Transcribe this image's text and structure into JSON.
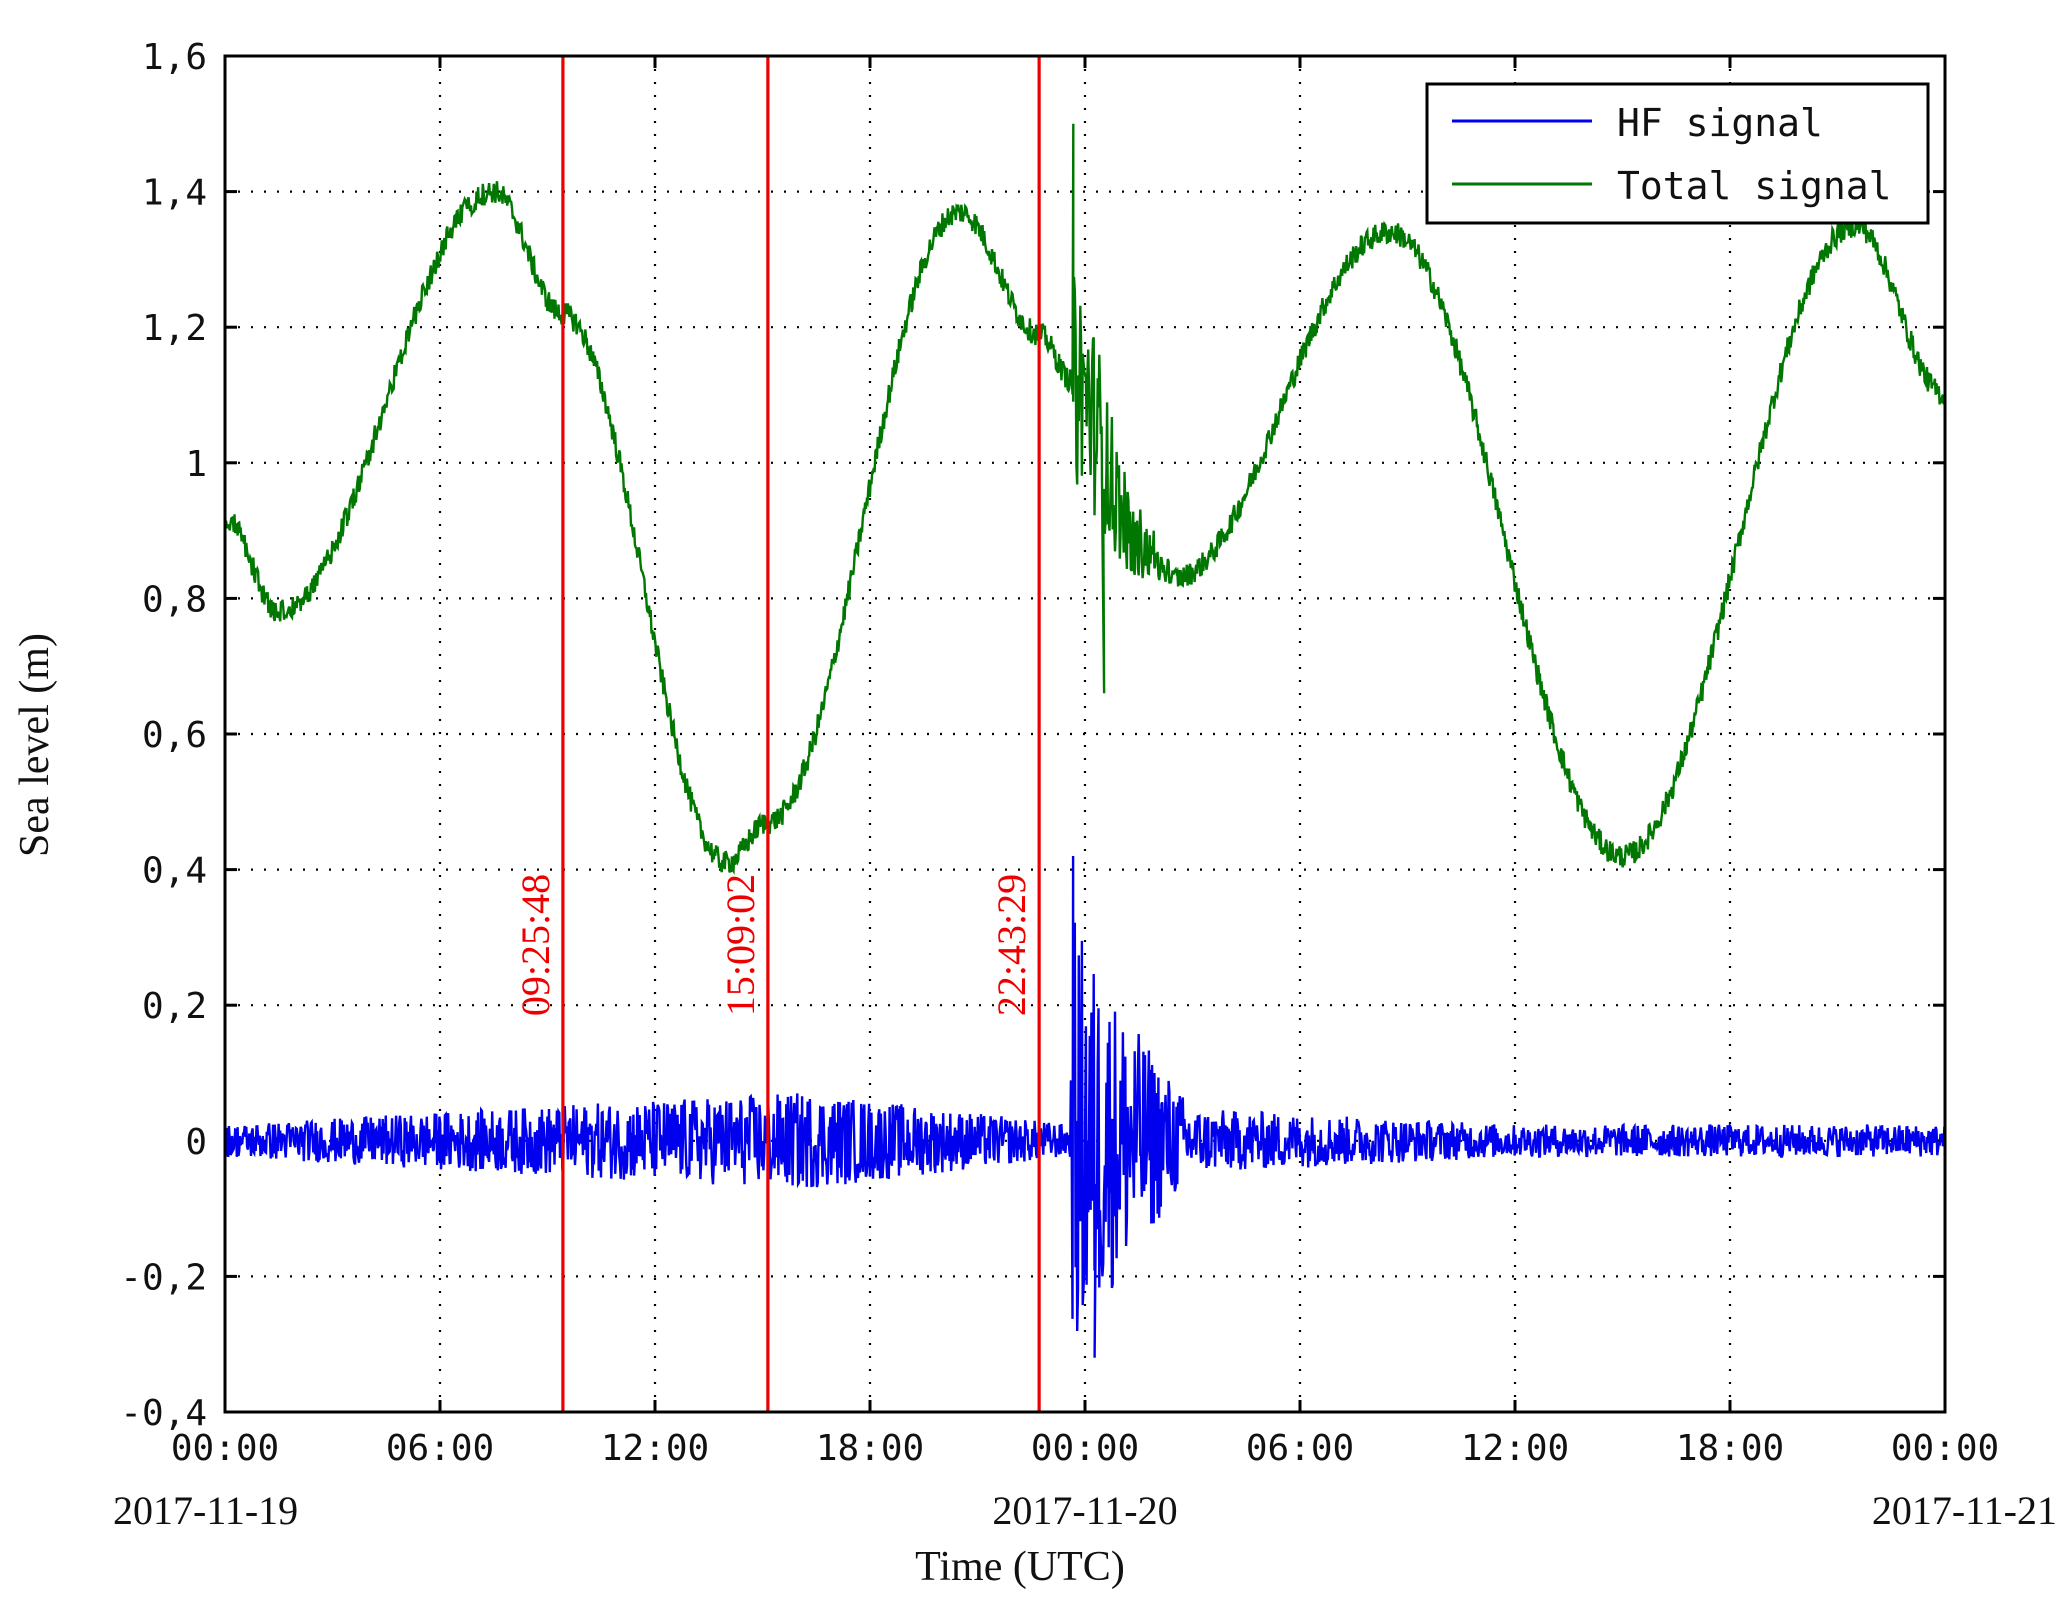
{
  "chart_data": {
    "type": "line",
    "xlabel": "Time (UTC)",
    "ylabel": "Sea level (m)",
    "xlim_hours": [
      0,
      48
    ],
    "ylim": [
      -0.4,
      1.6
    ],
    "x_ticks": [
      {
        "time": "00:00",
        "date": "2017-11-19"
      },
      {
        "time": "06:00",
        "date": ""
      },
      {
        "time": "12:00",
        "date": ""
      },
      {
        "time": "18:00",
        "date": ""
      },
      {
        "time": "00:00",
        "date": "2017-11-20"
      },
      {
        "time": "06:00",
        "date": ""
      },
      {
        "time": "12:00",
        "date": ""
      },
      {
        "time": "18:00",
        "date": ""
      },
      {
        "time": "00:00",
        "date": "2017-11-21"
      }
    ],
    "y_ticks": [
      "1,6",
      "1,4",
      "1,2",
      "1",
      "0,8",
      "0,6",
      "0,4",
      "0,2",
      "0",
      "-0,2",
      "-0,4"
    ],
    "y_tick_values": [
      1.6,
      1.4,
      1.2,
      1.0,
      0.8,
      0.6,
      0.4,
      0.2,
      0.0,
      -0.2,
      -0.4
    ],
    "grid": true,
    "legend_position": "top-right",
    "series": [
      {
        "name": "HF signal",
        "color": "#0000ee",
        "x_time": [
          "2017-11-19 00:00",
          "2017-11-19 10:30",
          "2017-11-19 16:15",
          "2017-11-19 23:35",
          "2017-11-19 23:40",
          "2017-11-20 00:30",
          "2017-11-20 01:30",
          "2017-11-20 03:00",
          "2017-11-20 12:00",
          "2017-11-21 00:00"
        ],
        "values": [
          0.0,
          0.0,
          0.0,
          0.0,
          0.42,
          -0.32,
          0.22,
          0.0,
          0.0,
          0.0
        ],
        "envelope": [
          0.03,
          0.07,
          0.09,
          0.03,
          0.42,
          0.3,
          0.2,
          0.06,
          0.03,
          0.03
        ]
      },
      {
        "name": "Total signal",
        "color": "#007700",
        "x_time": [
          "2017-11-19 00:00",
          "2017-11-19 01:30",
          "2017-11-19 07:30",
          "2017-11-19 09:25",
          "2017-11-19 14:00",
          "2017-11-19 15:09",
          "2017-11-19 20:30",
          "2017-11-19 22:43",
          "2017-11-19 23:40",
          "2017-11-20 01:30",
          "2017-11-20 02:30",
          "2017-11-20 08:30",
          "2017-11-20 15:00",
          "2017-11-20 21:30",
          "2017-11-21 00:00"
        ],
        "values": [
          0.92,
          0.78,
          1.4,
          1.22,
          0.41,
          0.47,
          1.37,
          1.19,
          1.12,
          0.88,
          0.83,
          1.34,
          0.42,
          1.35,
          1.1
        ],
        "burst_peak": 1.5,
        "burst_low": 0.66
      }
    ],
    "annotations": [
      {
        "label": "09:25:48",
        "hour": 9.43,
        "color": "#ee0000"
      },
      {
        "label": "15:09:02",
        "hour": 15.15,
        "color": "#ee0000"
      },
      {
        "label": "22:43:29",
        "hour": 22.72,
        "color": "#ee0000"
      }
    ]
  }
}
